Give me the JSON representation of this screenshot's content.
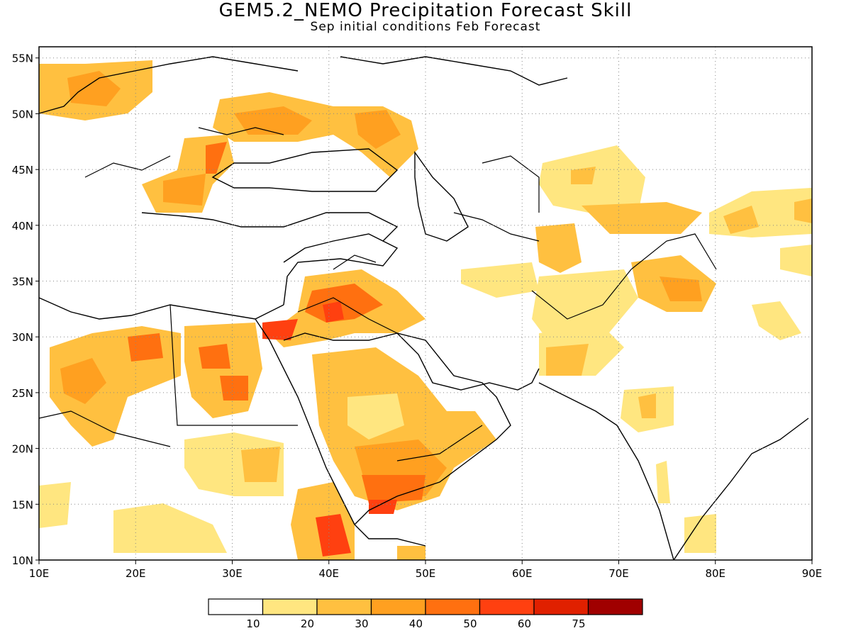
{
  "title": "GEM5.2_NEMO Precipitation Forecast Skill",
  "subtitle": "Sep initial conditions  Feb Forecast",
  "map": {
    "lon_range": [
      10,
      90
    ],
    "lat_range": [
      10,
      56
    ],
    "lon_ticks": [
      "10E",
      "20E",
      "30E",
      "40E",
      "50E",
      "60E",
      "70E",
      "80E",
      "90E"
    ],
    "lat_ticks": [
      "10N",
      "15N",
      "20N",
      "25N",
      "30N",
      "35N",
      "40N",
      "45N",
      "50N",
      "55N"
    ],
    "grid": "dotted"
  },
  "colorbar": {
    "labels": [
      "10",
      "20",
      "30",
      "40",
      "50",
      "60",
      "75"
    ],
    "colors": [
      "#ffffff",
      "#ffe680",
      "#ffc040",
      "#ffa020",
      "#ff7010",
      "#ff4010",
      "#e02000",
      "#a00000"
    ]
  }
}
